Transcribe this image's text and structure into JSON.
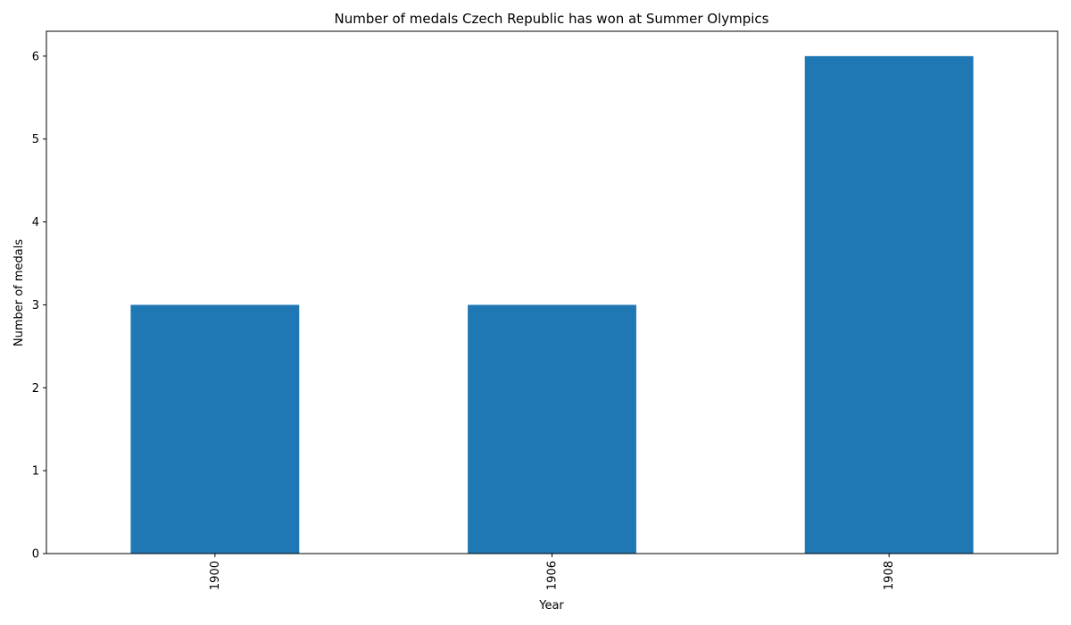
{
  "chart_data": {
    "type": "bar",
    "title": "Number of medals Czech Republic has won at Summer Olympics",
    "xlabel": "Year",
    "ylabel": "Number of medals",
    "categories": [
      "1900",
      "1906",
      "1908"
    ],
    "values": [
      3,
      3,
      6
    ],
    "ylim": [
      0,
      6.3
    ],
    "yticks": [
      0,
      1,
      2,
      3,
      4,
      5,
      6
    ],
    "bar_color": "#1f77b4",
    "grid": false,
    "legend": "none"
  }
}
